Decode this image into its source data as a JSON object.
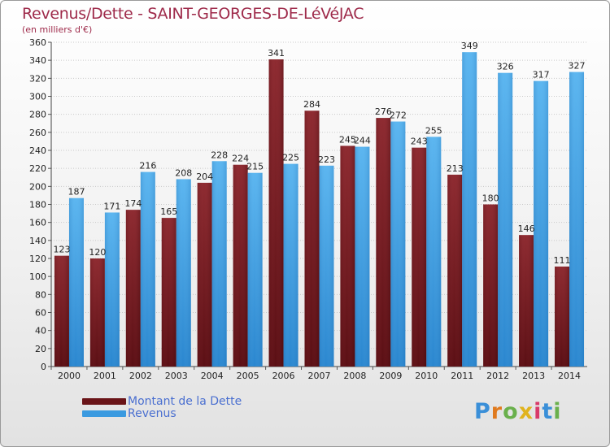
{
  "header": {
    "title": "Revenus/Dette - SAINT-GEORGES-DE-LéVéJAC",
    "subtitle": "(en milliers d'€)"
  },
  "legend": {
    "debt_label": "Montant de la Dette",
    "revenue_label": "Revenus"
  },
  "logo": {
    "text": "Proxiti"
  },
  "colors": {
    "debt": "#7a1e24",
    "revenue": "#3a9ae0",
    "title": "#9e2a4a",
    "legend_text": "#4a6fd0"
  },
  "chart_data": {
    "type": "bar",
    "title": "Revenus/Dette - SAINT-GEORGES-DE-LéVéJAC",
    "subtitle": "(en milliers d'€)",
    "categories": [
      "2000",
      "2001",
      "2002",
      "2003",
      "2004",
      "2005",
      "2006",
      "2007",
      "2008",
      "2009",
      "2010",
      "2011",
      "2012",
      "2013",
      "2014"
    ],
    "series": [
      {
        "name": "Montant de la Dette",
        "values": [
          123,
          120,
          174,
          165,
          204,
          224,
          341,
          284,
          245,
          276,
          243,
          213,
          180,
          146,
          111
        ]
      },
      {
        "name": "Revenus",
        "values": [
          187,
          171,
          216,
          208,
          228,
          215,
          225,
          223,
          244,
          272,
          255,
          349,
          326,
          317,
          327
        ]
      }
    ],
    "ylim": [
      0,
      360
    ],
    "yticks": [
      0,
      20,
      40,
      60,
      80,
      100,
      120,
      140,
      160,
      180,
      200,
      220,
      240,
      260,
      280,
      300,
      320,
      340,
      360
    ],
    "grid": true,
    "legend_position": "bottom-left"
  }
}
